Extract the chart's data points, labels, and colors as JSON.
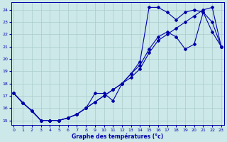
{
  "xlabel": "Graphe des températures (°c)",
  "bg_color": "#cce8e8",
  "line_color": "#0000aa",
  "grid_color": "#aacccc",
  "xlim": [
    -0.3,
    23.3
  ],
  "ylim": [
    14.6,
    24.6
  ],
  "yticks": [
    15,
    16,
    17,
    18,
    19,
    20,
    21,
    22,
    23,
    24
  ],
  "xticks": [
    0,
    1,
    2,
    3,
    4,
    5,
    6,
    7,
    8,
    9,
    10,
    11,
    12,
    13,
    14,
    15,
    16,
    17,
    18,
    19,
    20,
    21,
    22,
    23
  ],
  "line1_x": [
    0,
    1,
    2,
    3,
    4,
    5,
    6,
    7,
    8,
    9,
    10,
    11,
    12,
    13,
    14,
    15,
    16,
    17,
    18,
    19,
    20,
    21,
    22,
    23
  ],
  "line1_y": [
    17.2,
    16.4,
    15.8,
    15.0,
    15.0,
    15.0,
    15.2,
    15.5,
    16.0,
    16.5,
    17.0,
    17.5,
    18.0,
    18.8,
    19.8,
    24.2,
    24.2,
    23.8,
    23.2,
    23.8,
    24.0,
    23.8,
    22.2,
    21.0
  ],
  "line2_x": [
    0,
    1,
    2,
    3,
    4,
    5,
    6,
    7,
    8,
    9,
    10,
    11,
    12,
    13,
    14,
    15,
    16,
    17,
    18,
    19,
    20,
    21,
    22,
    23
  ],
  "line2_y": [
    17.2,
    16.4,
    15.8,
    15.0,
    15.0,
    15.0,
    15.2,
    15.5,
    16.0,
    17.2,
    17.2,
    16.6,
    18.0,
    18.8,
    19.5,
    20.8,
    21.8,
    22.2,
    21.8,
    20.8,
    21.2,
    23.8,
    23.0,
    21.0
  ],
  "line3_x": [
    0,
    3,
    4,
    5,
    6,
    7,
    8,
    9,
    10,
    11,
    12,
    13,
    14,
    15,
    16,
    17,
    18,
    19,
    20,
    21,
    22,
    23
  ],
  "line3_y": [
    17.2,
    15.0,
    15.0,
    15.0,
    15.2,
    15.5,
    16.0,
    16.5,
    17.0,
    17.5,
    18.0,
    18.5,
    19.2,
    20.5,
    21.5,
    22.0,
    22.5,
    23.0,
    23.5,
    24.0,
    24.2,
    21.0
  ]
}
